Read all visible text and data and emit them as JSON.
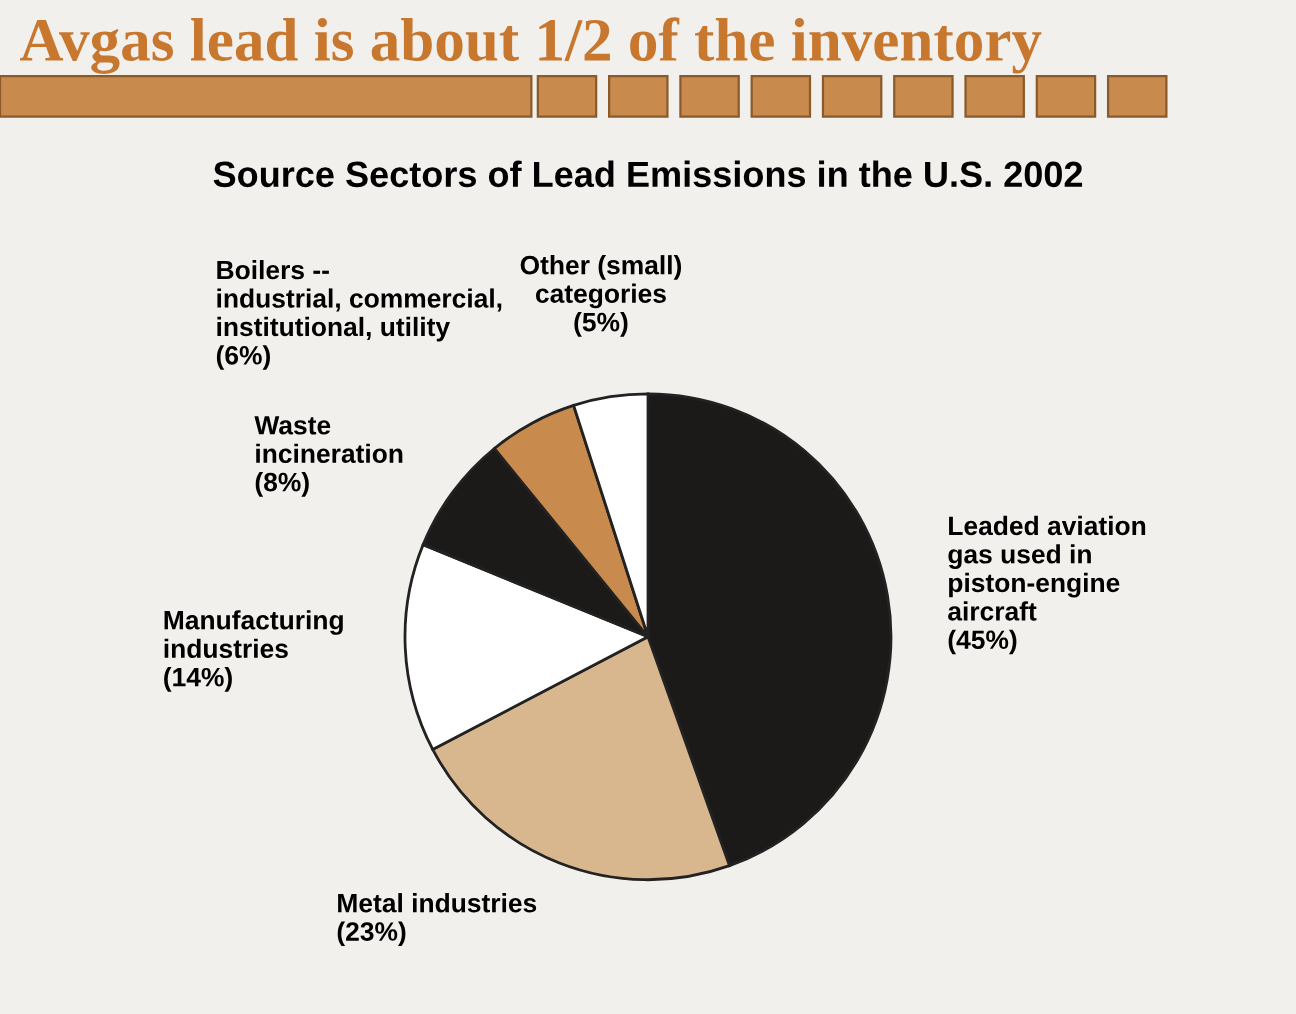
{
  "chart_data": {
    "type": "pie",
    "title": "Avgas lead is about 1/2 of the inventory",
    "subtitle": "Source Sectors of Lead Emissions in the U.S. 2002",
    "categories": [
      "Leaded aviation\ngas used in\npiston-engine\naircraft",
      "Metal industries",
      "Manufacturing\nindustries",
      "Waste\nincineration",
      "Boilers --\nindustrial, commercial,\ninstitutional, utility",
      "Other (small)\ncategories"
    ],
    "values": [
      45,
      23,
      14,
      8,
      6,
      5
    ],
    "value_labels": [
      "(45%)",
      "(23%)",
      "(14%)",
      "(8%)",
      "(6%)",
      "(5%)"
    ],
    "colors": [
      "#1c1a18",
      "#d8b68e",
      "#ffffff",
      "#1c1a18",
      "#c98a4e",
      "#ffffff"
    ],
    "legend": false
  }
}
